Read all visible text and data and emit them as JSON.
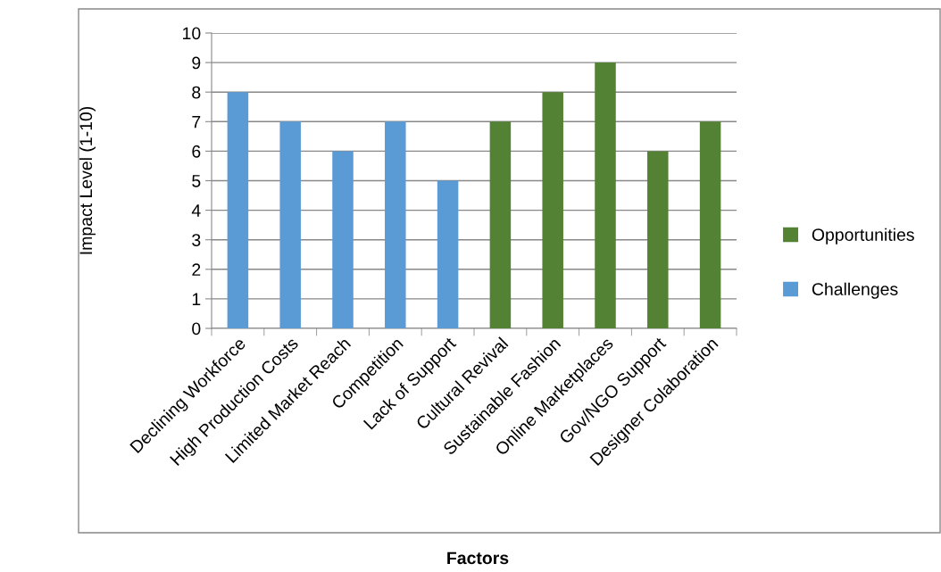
{
  "chart_data": {
    "type": "bar",
    "stacked": true,
    "xlabel": "Factors",
    "ylabel": "Impact Level (1-10)",
    "categories": [
      "Declining Workforce",
      "High Production Costs",
      "Limited Market Reach",
      "Competition",
      "Lack of Support",
      "Cultural Revival",
      "Sustainable Fashion",
      "Online Marketplaces",
      "Gov/NGO Support",
      "Designer Colaboration"
    ],
    "series": [
      {
        "name": "Challenges",
        "color": "#5b9bd5",
        "values": [
          8,
          7,
          6,
          7,
          5,
          null,
          null,
          null,
          null,
          null
        ]
      },
      {
        "name": "Opportunities",
        "color": "#548235",
        "values": [
          null,
          null,
          null,
          null,
          null,
          7,
          8,
          9,
          6,
          7
        ]
      }
    ],
    "ylim": [
      0,
      10
    ],
    "yticks": [
      0,
      1,
      2,
      3,
      4,
      5,
      6,
      7,
      8,
      9,
      10
    ],
    "grid": "y",
    "legend": "right"
  }
}
